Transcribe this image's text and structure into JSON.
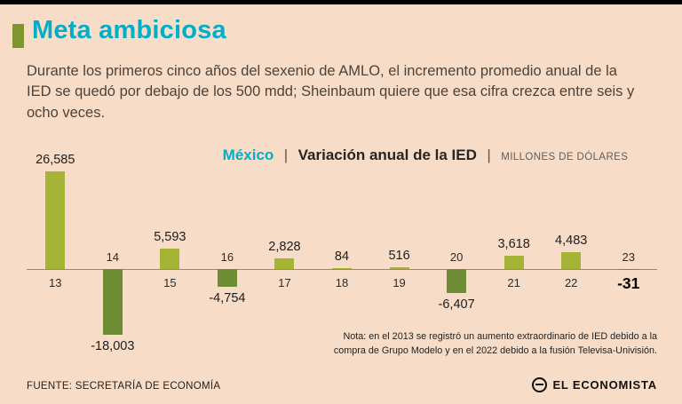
{
  "header": {
    "title": "Meta ambiciosa",
    "accent_color": "#7f9630",
    "title_color": "#00aec8"
  },
  "intro": {
    "text": "Durante los primeros cinco años del sexenio de AMLO, el incremento promedio anual de la IED se quedó por debajo de los 500 mdd; Sheinbaum quiere que esa cifra crezca entre seis y ocho veces."
  },
  "chart_header": {
    "country": "México",
    "separator": "|",
    "title": "Variación anual de la IED",
    "units": "MILLONES DE DÓLARES"
  },
  "chart_data": {
    "type": "bar",
    "title": "México | Variación anual de la IED",
    "units": "MILLONES DE DÓLARES",
    "categories": [
      "13",
      "14",
      "15",
      "16",
      "17",
      "18",
      "19",
      "20",
      "21",
      "22",
      "23"
    ],
    "values": [
      26585,
      -18003,
      5593,
      -4754,
      2828,
      84,
      516,
      -6407,
      3618,
      4483,
      -31
    ],
    "labels": [
      "26,585",
      "-18,003",
      "5,593",
      "-4,754",
      "2,828",
      "84",
      "516",
      "-6,407",
      "3,618",
      "4,483",
      "-31"
    ],
    "positive_color": "#a6b435",
    "negative_color": "#6d8c33",
    "emphasized_category": "23",
    "grid": false,
    "ylim": [
      -18003,
      26585
    ],
    "baseline": 0
  },
  "note": {
    "text": "Nota: en el 2013 se registró un aumento extraordinario de IED debido a la compra de Grupo Modelo y en el 2022 debido a la fusión Televisa-Univisión."
  },
  "footer": {
    "source": "FUENTE: SECRETARÍA DE ECONOMÍA",
    "brand": "EL ECONOMISTA"
  }
}
